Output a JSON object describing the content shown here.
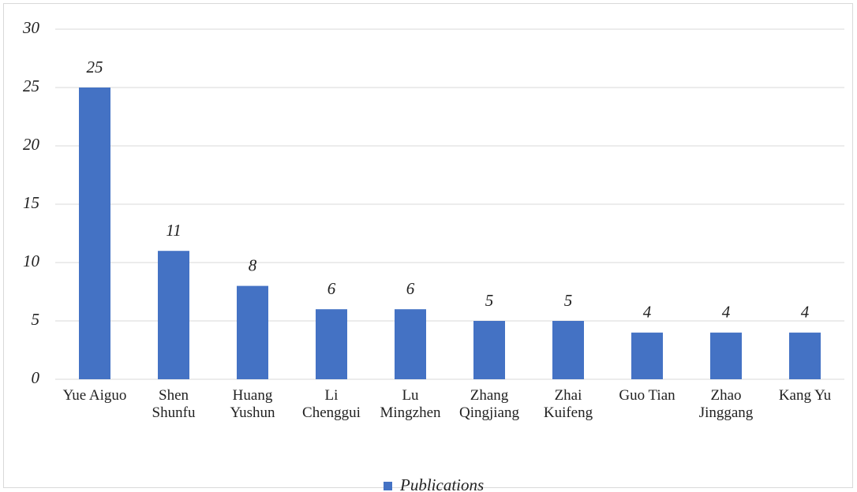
{
  "chart_data": {
    "type": "bar",
    "categories": [
      "Yue Aiguo",
      "Shen Shunfu",
      "Huang Yushun",
      "Li Chenggui",
      "Lu Mingzhen",
      "Zhang Qingjiang",
      "Zhai Kuifeng",
      "Guo Tian",
      "Zhao Jinggang",
      "Kang Yu"
    ],
    "series": [
      {
        "name": "Publications",
        "color": "#4472c4",
        "values": [
          25,
          11,
          8,
          6,
          6,
          5,
          5,
          4,
          4,
          4
        ]
      }
    ],
    "ylim": [
      0,
      30
    ],
    "yticks": [
      0,
      5,
      10,
      15,
      20,
      25,
      30
    ],
    "grid": true,
    "legend": "bottom"
  }
}
